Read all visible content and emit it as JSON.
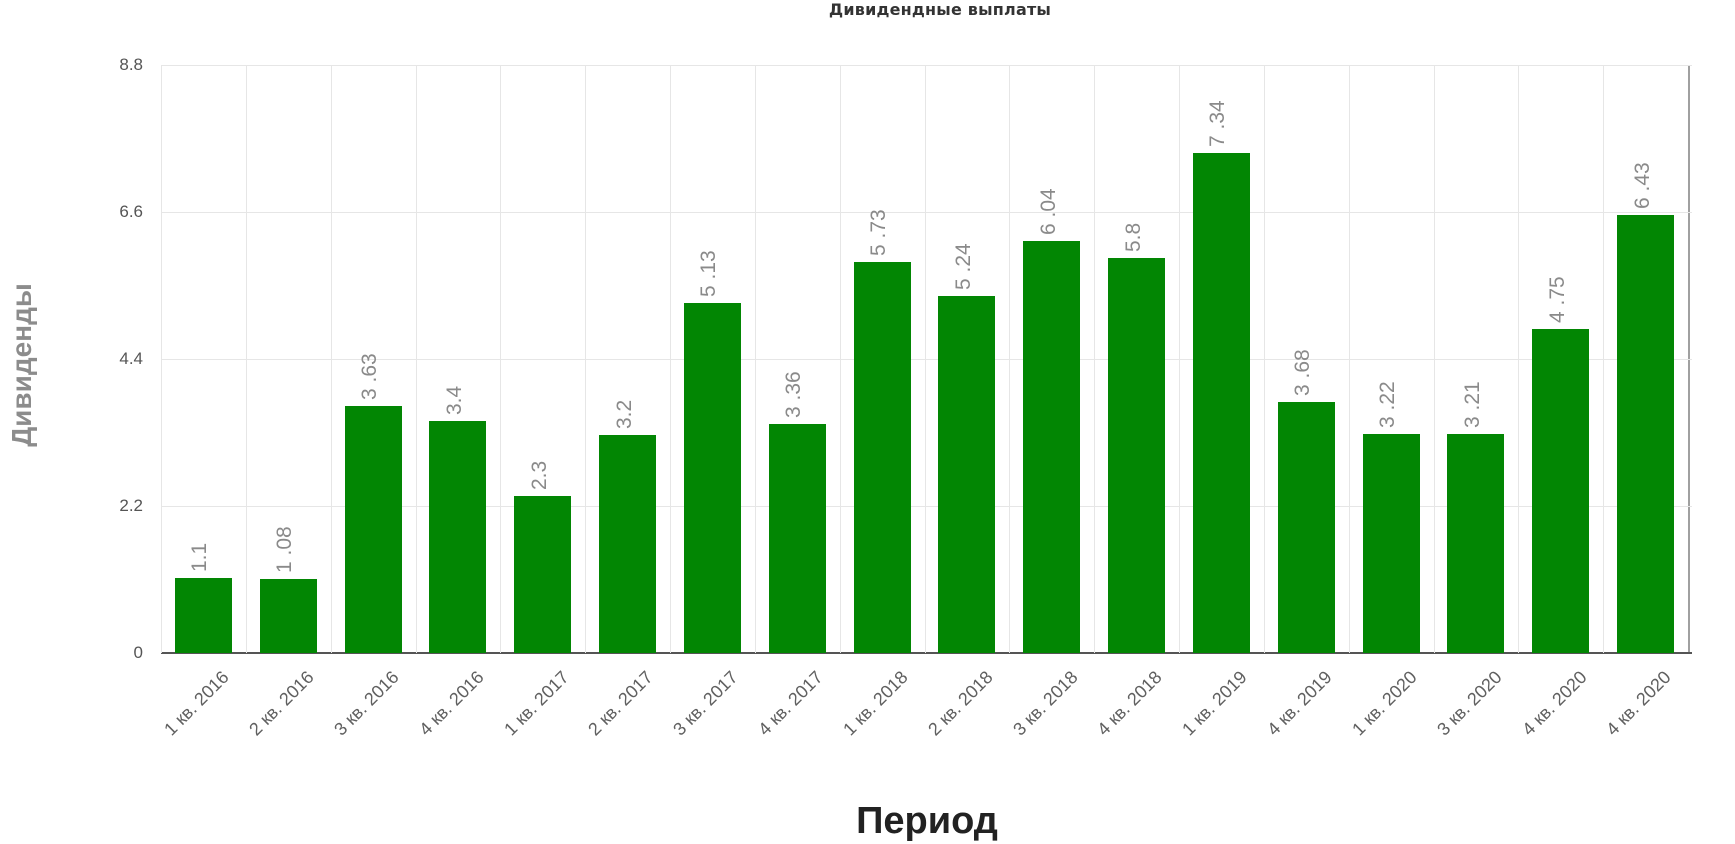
{
  "chart_data": {
    "type": "bar",
    "title": "Дивидендные выплаты",
    "xlabel": "Период",
    "ylabel": "Дивиденды",
    "ylim": [
      0,
      8.8
    ],
    "yticks": [
      "0",
      "2.2",
      "4.4",
      "6.6",
      "8.8"
    ],
    "grid": true,
    "legend": null,
    "bar_color": "#028603",
    "categories": [
      "1 кв. 2016",
      "2 кв. 2016",
      "3 кв. 2016",
      "4 кв. 2016",
      "1 кв. 2017",
      "2 кв. 2017",
      "3 кв. 2017",
      "4 кв. 2017",
      "1 кв. 2018",
      "2 кв. 2018",
      "3 кв. 2018",
      "4 кв. 2018",
      "1 кв. 2019",
      "4 кв. 2019",
      "1 кв. 2020",
      "3 кв. 2020",
      "4 кв. 2020",
      "4 кв. 2020"
    ],
    "values": [
      1.1,
      1.08,
      3.63,
      3.4,
      2.3,
      3.2,
      5.13,
      3.36,
      5.73,
      5.24,
      6.04,
      5.8,
      7.34,
      3.68,
      3.22,
      3.21,
      4.75,
      6.43
    ],
    "data_labels": [
      "1.1",
      "1 .08",
      "3 .63",
      "3.4",
      "2.3",
      "3.2",
      "5 .13",
      "3 .36",
      "5 .73",
      "5 .24",
      "6 .04",
      "5.8",
      "7 .34",
      "3 .68",
      "3 .22",
      "3 .21",
      "4 .75",
      "6 .43"
    ]
  }
}
